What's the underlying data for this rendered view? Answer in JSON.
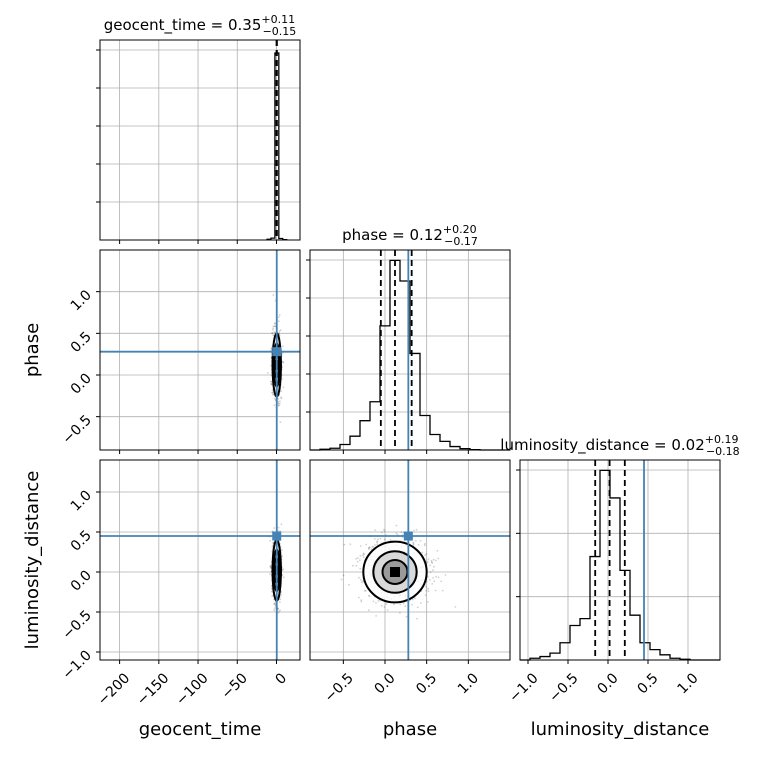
{
  "chart_data": {
    "type": "corner",
    "parameters": [
      "geocent_time",
      "phase",
      "luminosity_distance"
    ],
    "truth_color": "#4682b4",
    "panels": [
      {
        "kind": "hist1d",
        "param": "geocent_time",
        "title": {
          "name": "geocent_time",
          "median": "0.35",
          "upper": "+0.11",
          "lower": "−0.15"
        },
        "xlim": [
          -225,
          30
        ],
        "bins_x": [
          -12,
          -7,
          -2,
          3,
          8,
          13
        ],
        "counts": [
          0.4,
          1.0,
          100,
          0.8,
          0.2
        ],
        "ymax": 107,
        "quantiles": [
          0.2,
          0.35,
          0.46
        ],
        "truth": null,
        "yticks_count": 5
      },
      {
        "kind": "hist1d",
        "param": "phase",
        "title": {
          "name": "phase",
          "median": "0.12",
          "upper": "+0.20",
          "lower": "−0.17"
        },
        "xlim": [
          -0.9,
          1.5
        ],
        "bins_x": [
          -0.9,
          -0.78,
          -0.66,
          -0.54,
          -0.42,
          -0.3,
          -0.18,
          -0.06,
          0.06,
          0.18,
          0.3,
          0.42,
          0.54,
          0.66,
          0.78,
          0.9,
          1.02,
          1.14,
          1.26,
          1.38,
          1.5
        ],
        "counts": [
          0,
          0.2,
          0.5,
          1.6,
          4.0,
          8.5,
          14,
          36,
          55,
          49,
          28,
          10,
          4.5,
          2.5,
          1.0,
          0.4,
          0.1,
          0,
          0,
          0
        ],
        "ymax": 58,
        "quantiles": [
          -0.05,
          0.12,
          0.32
        ],
        "truth": 0.28,
        "yticks_count": 5
      },
      {
        "kind": "hist1d",
        "param": "luminosity_distance",
        "title": {
          "name": "luminosity_distance",
          "median": "0.02",
          "upper": "+0.19",
          "lower": "−0.18"
        },
        "xlim": [
          -1.1,
          1.4
        ],
        "bins_x": [
          -1.1,
          -0.975,
          -0.85,
          -0.725,
          -0.6,
          -0.475,
          -0.35,
          -0.225,
          -0.1,
          0.025,
          0.15,
          0.275,
          0.4,
          0.525,
          0.65,
          0.775,
          0.9,
          1.025,
          1.15,
          1.275,
          1.4
        ],
        "counts": [
          0,
          0.5,
          1.0,
          2.0,
          5.0,
          10,
          12,
          30,
          55,
          47,
          26,
          13,
          5,
          3,
          1.5,
          0.5,
          0.2,
          0,
          0,
          0
        ],
        "ymax": 58,
        "quantiles": [
          -0.16,
          0.02,
          0.21
        ],
        "truth": 0.45,
        "yticks_count": 3
      },
      {
        "kind": "hist2d",
        "xparam": "geocent_time",
        "yparam": "phase",
        "xlim": [
          -225,
          30
        ],
        "ylim": [
          -0.9,
          1.5
        ],
        "center": [
          0.35,
          0.12
        ],
        "spread": [
          1.0,
          0.2
        ],
        "truth": [
          0.35,
          0.28
        ]
      },
      {
        "kind": "hist2d",
        "xparam": "geocent_time",
        "yparam": "luminosity_distance",
        "xlim": [
          -225,
          30
        ],
        "ylim": [
          -1.1,
          1.4
        ],
        "center": [
          0.35,
          0.02
        ],
        "spread": [
          1.0,
          0.2
        ],
        "truth": [
          0.35,
          0.45
        ]
      },
      {
        "kind": "hist2d",
        "xparam": "phase",
        "yparam": "luminosity_distance",
        "xlim": [
          -0.9,
          1.5
        ],
        "ylim": [
          -1.1,
          1.4
        ],
        "center": [
          0.12,
          0.0
        ],
        "spread": [
          0.2,
          0.2
        ],
        "truth": [
          0.28,
          0.45
        ]
      }
    ],
    "axis_ticks": {
      "geocent_time": {
        "values": [
          -200,
          -150,
          -100,
          -50,
          0
        ],
        "labels": [
          "−200",
          "−150",
          "−100",
          "−50",
          "0"
        ]
      },
      "phase": {
        "values": [
          -0.5,
          0.0,
          0.5,
          1.0
        ],
        "labels": [
          "−0.5",
          "0.0",
          "0.5",
          "1.0"
        ]
      },
      "luminosity_distance": {
        "values": [
          -1.0,
          -0.5,
          0.0,
          0.5,
          1.0
        ],
        "labels": [
          "−1.0",
          "−0.5",
          "0.0",
          "0.5",
          "1.0"
        ]
      }
    },
    "axis_labels": {
      "x": [
        "geocent_time",
        "phase",
        "luminosity_distance"
      ],
      "y": [
        "phase",
        "luminosity_distance"
      ]
    },
    "grid": true
  }
}
